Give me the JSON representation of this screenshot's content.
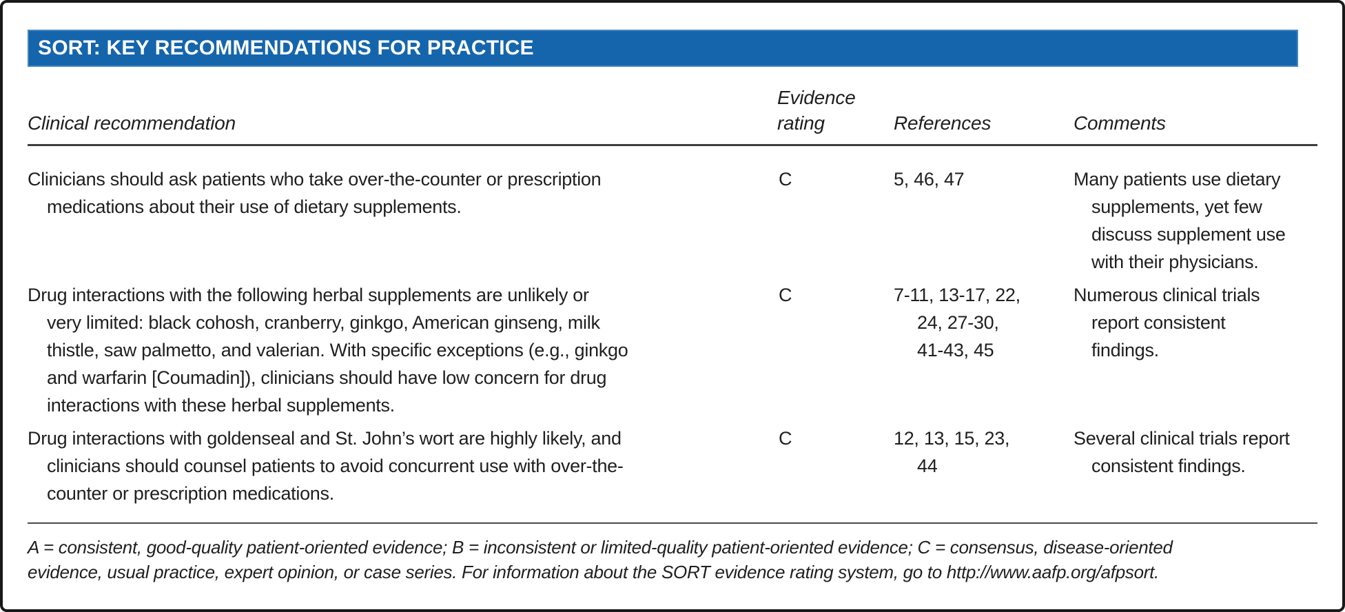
{
  "title_bar": {
    "title": "SORT: KEY RECOMMENDATIONS FOR PRACTICE",
    "background": "#1565ac"
  },
  "table": {
    "columns": {
      "recommendation": "Clinical recommendation",
      "evidence_rating": "Evidence\nrating",
      "references": "References",
      "comments": "Comments"
    },
    "rows": [
      {
        "recommendation": "Clinicians should ask patients who take over-the-counter or prescription\nmedications about their use of dietary supplements.",
        "evidence_rating": "C",
        "references": "5, 46, 47",
        "comments": "Many patients use dietary\nsupplements, yet few\ndiscuss supplement use\nwith their physicians."
      },
      {
        "recommendation": "Drug interactions with the following herbal supplements are unlikely or\nvery limited: black cohosh, cranberry, ginkgo, American ginseng, milk\nthistle, saw palmetto, and valerian. With specific exceptions (e.g., ginkgo\nand warfarin [Coumadin]), clinicians should have low concern for drug\ninteractions with these herbal supplements.",
        "evidence_rating": "C",
        "references": "7-11, 13-17, 22,\n24, 27-30,\n41-43, 45",
        "comments": "Numerous clinical trials\nreport consistent\nfindings."
      },
      {
        "recommendation": "Drug interactions with goldenseal and St. John’s wort are highly likely, and\nclinicians should counsel patients to avoid concurrent use with over-the-\ncounter or prescription medications.",
        "evidence_rating": "C",
        "references": "12, 13, 15, 23,\n44",
        "comments": "Several clinical trials report\nconsistent findings."
      }
    ]
  },
  "footnote": "A = consistent, good-quality patient-oriented evidence; B = inconsistent or limited-quality patient-oriented evidence; C = consensus, disease-oriented\nevidence, usual practice, expert opinion, or case series. For information about the SORT evidence rating system, go to http://www.aafp.org/afpsort."
}
